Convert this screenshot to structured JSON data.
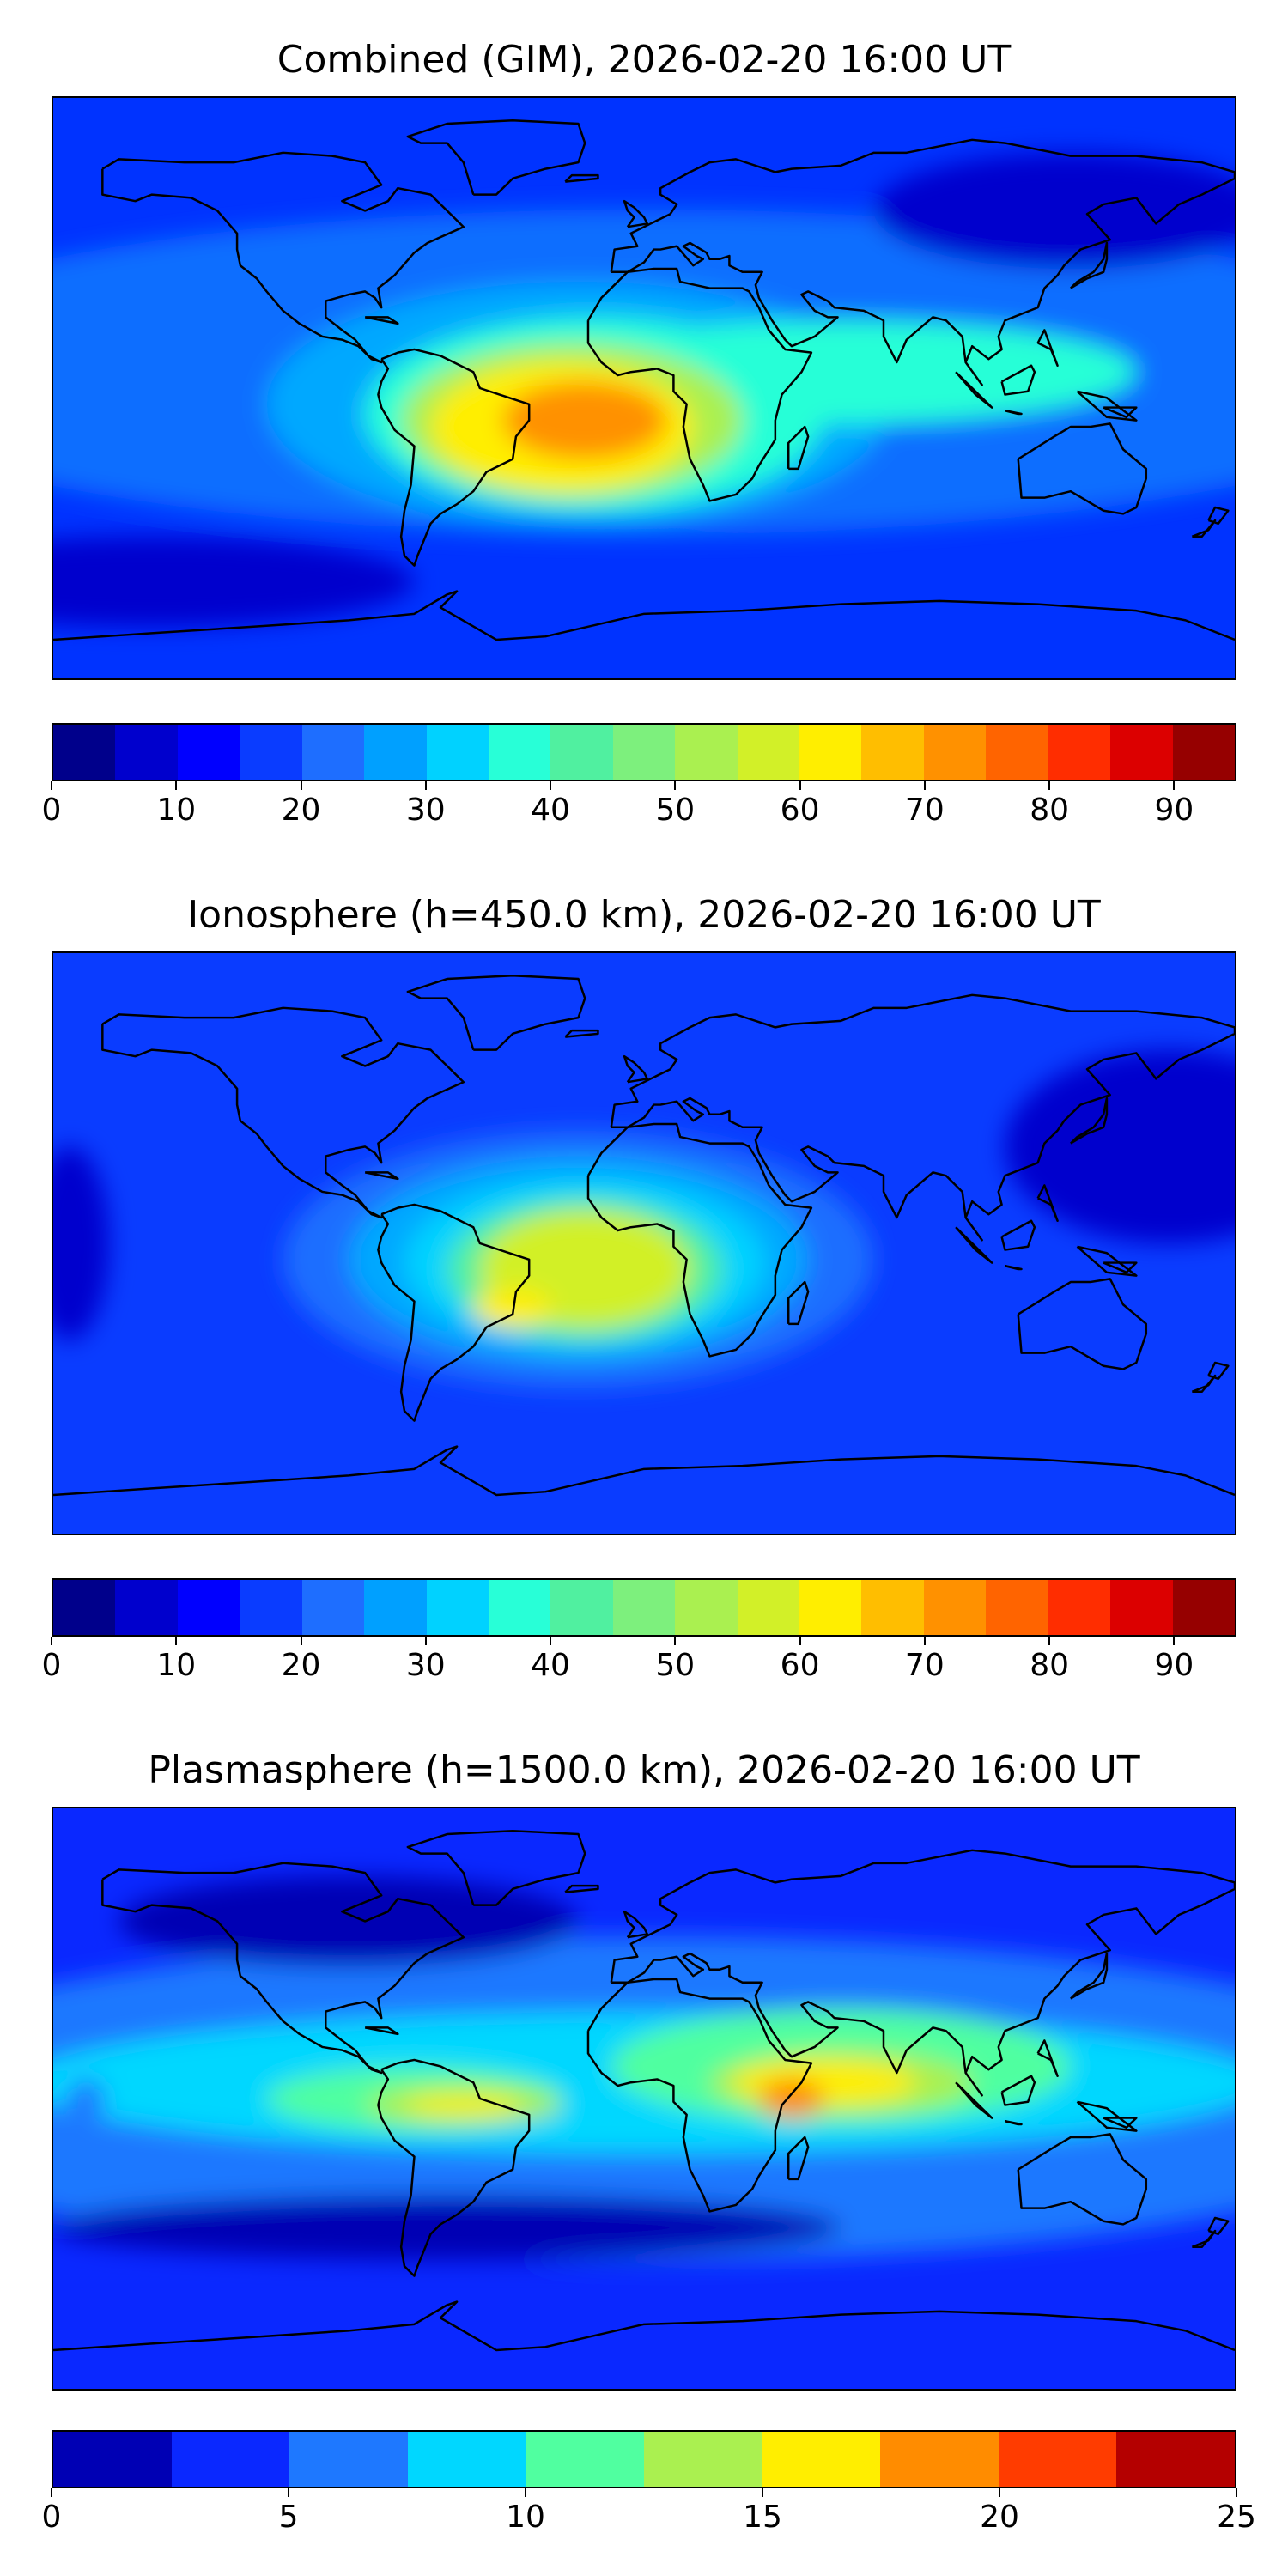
{
  "panels": [
    {
      "title": "Combined (GIM), 2026-02-20 16:00 UT",
      "colorbar": {
        "vmin": 0,
        "vmax": 95,
        "ticks": [
          "0",
          "10",
          "20",
          "30",
          "40",
          "50",
          "60",
          "70",
          "80",
          "90"
        ],
        "tick_values": [
          0,
          10,
          20,
          30,
          40,
          50,
          60,
          70,
          80,
          90
        ],
        "colors": [
          "#00008b",
          "#0000cd",
          "#0000ff",
          "#0a3cff",
          "#1e6eff",
          "#00a0ff",
          "#00d2ff",
          "#28ffd7",
          "#50f0a0",
          "#7df07d",
          "#aaf050",
          "#d2f028",
          "#ffee00",
          "#ffbe00",
          "#ff9100",
          "#ff6400",
          "#ff2d00",
          "#dc0000",
          "#960000"
        ]
      },
      "field": {
        "background": "#0033ff",
        "features": [
          {
            "kind": "band",
            "lat": 5,
            "color": "#0a6eff"
          },
          {
            "kind": "blob",
            "lon": -20,
            "lat": -5,
            "rx": 95,
            "ry": 38,
            "color": "#00a8ff"
          },
          {
            "kind": "blob",
            "lon": -15,
            "lat": -8,
            "rx": 70,
            "ry": 30,
            "color": "#28ffd7"
          },
          {
            "kind": "blob",
            "lon": 60,
            "lat": 5,
            "rx": 90,
            "ry": 16,
            "color": "#28ffd7"
          },
          {
            "kind": "blob",
            "lon": -22,
            "lat": -10,
            "rx": 52,
            "ry": 24,
            "color": "#aaf050"
          },
          {
            "kind": "blob",
            "lon": -25,
            "lat": -12,
            "rx": 40,
            "ry": 20,
            "color": "#ffee00"
          },
          {
            "kind": "blob",
            "lon": -18,
            "lat": -10,
            "rx": 25,
            "ry": 12,
            "color": "#ff9100"
          },
          {
            "kind": "blob",
            "lon": -150,
            "lat": -60,
            "rx": 80,
            "ry": 14,
            "color": "#0000cd"
          },
          {
            "kind": "blob",
            "lon": 130,
            "lat": 55,
            "rx": 60,
            "ry": 18,
            "color": "#0000cd"
          }
        ]
      }
    },
    {
      "title": "Ionosphere  (h=450.0 km), 2026-02-20 16:00 UT",
      "colorbar": {
        "vmin": 0,
        "vmax": 95,
        "ticks": [
          "0",
          "10",
          "20",
          "30",
          "40",
          "50",
          "60",
          "70",
          "80",
          "90"
        ],
        "tick_values": [
          0,
          10,
          20,
          30,
          40,
          50,
          60,
          70,
          80,
          90
        ],
        "colors": [
          "#00008b",
          "#0000cd",
          "#0000ff",
          "#0a3cff",
          "#1e6eff",
          "#00a0ff",
          "#00d2ff",
          "#28ffd7",
          "#50f0a0",
          "#7df07d",
          "#aaf050",
          "#d2f028",
          "#ffee00",
          "#ffbe00",
          "#ff9100",
          "#ff6400",
          "#ff2d00",
          "#dc0000",
          "#960000"
        ]
      },
      "field": {
        "background": "#0a3cff",
        "features": [
          {
            "kind": "blob",
            "lon": -20,
            "lat": -5,
            "rx": 90,
            "ry": 40,
            "color": "#1e6eff"
          },
          {
            "kind": "blob",
            "lon": -20,
            "lat": -5,
            "rx": 70,
            "ry": 32,
            "color": "#00a8ff"
          },
          {
            "kind": "blob",
            "lon": -18,
            "lat": -6,
            "rx": 55,
            "ry": 26,
            "color": "#00d2ff"
          },
          {
            "kind": "blob",
            "lon": -18,
            "lat": -8,
            "rx": 42,
            "ry": 22,
            "color": "#50f0a0"
          },
          {
            "kind": "blob",
            "lon": -18,
            "lat": -8,
            "rx": 32,
            "ry": 18,
            "color": "#d2f028"
          },
          {
            "kind": "blob",
            "lon": -40,
            "lat": -20,
            "rx": 12,
            "ry": 6,
            "color": "#ffee00"
          },
          {
            "kind": "blob",
            "lon": 160,
            "lat": 30,
            "rx": 50,
            "ry": 30,
            "color": "#0000cd"
          },
          {
            "kind": "blob",
            "lon": -175,
            "lat": 0,
            "rx": 12,
            "ry": 30,
            "color": "#0000cd"
          }
        ]
      }
    },
    {
      "title": "Plasmasphere (h=1500.0 km), 2026-02-20 16:00 UT",
      "colorbar": {
        "vmin": 0,
        "vmax": 25,
        "ticks": [
          "0",
          "5",
          "10",
          "15",
          "20",
          "25"
        ],
        "tick_values": [
          0,
          5,
          10,
          15,
          20,
          25
        ],
        "colors": [
          "#0000b4",
          "#0a28ff",
          "#1e78ff",
          "#00d7ff",
          "#50ffa0",
          "#aaf050",
          "#ffee00",
          "#ff8c00",
          "#ff3c00",
          "#b40000"
        ]
      },
      "field": {
        "background": "#0a28ff",
        "features": [
          {
            "kind": "band",
            "lat": 0,
            "color": "#1e78ff"
          },
          {
            "kind": "blob",
            "lon": 0,
            "lat": 5,
            "rx": 190,
            "ry": 22,
            "color": "#00d7ff"
          },
          {
            "kind": "blob",
            "lon": -70,
            "lat": 0,
            "rx": 45,
            "ry": 10,
            "color": "#50ffa0"
          },
          {
            "kind": "blob",
            "lon": 60,
            "lat": 10,
            "rx": 70,
            "ry": 18,
            "color": "#50ffa0"
          },
          {
            "kind": "blob",
            "lon": -55,
            "lat": -2,
            "rx": 30,
            "ry": 6,
            "color": "#aaf050"
          },
          {
            "kind": "blob",
            "lon": 60,
            "lat": 5,
            "rx": 40,
            "ry": 10,
            "color": "#aaf050"
          },
          {
            "kind": "blob",
            "lon": -55,
            "lat": -2,
            "rx": 18,
            "ry": 3,
            "color": "#ffee00"
          },
          {
            "kind": "blob",
            "lon": 55,
            "lat": 5,
            "rx": 28,
            "ry": 7,
            "color": "#ffee00"
          },
          {
            "kind": "blob",
            "lon": 45,
            "lat": 0,
            "rx": 10,
            "ry": 6,
            "color": "#ff8c00"
          },
          {
            "kind": "blob",
            "lon": -170,
            "lat": 0,
            "rx": 6,
            "ry": 6,
            "color": "#1e78ff"
          },
          {
            "kind": "blob",
            "lon": -90,
            "lat": 55,
            "rx": 70,
            "ry": 14,
            "color": "#0000b4"
          },
          {
            "kind": "blob",
            "lon": -60,
            "lat": -40,
            "rx": 120,
            "ry": 10,
            "color": "#0000b4"
          }
        ]
      }
    }
  ]
}
